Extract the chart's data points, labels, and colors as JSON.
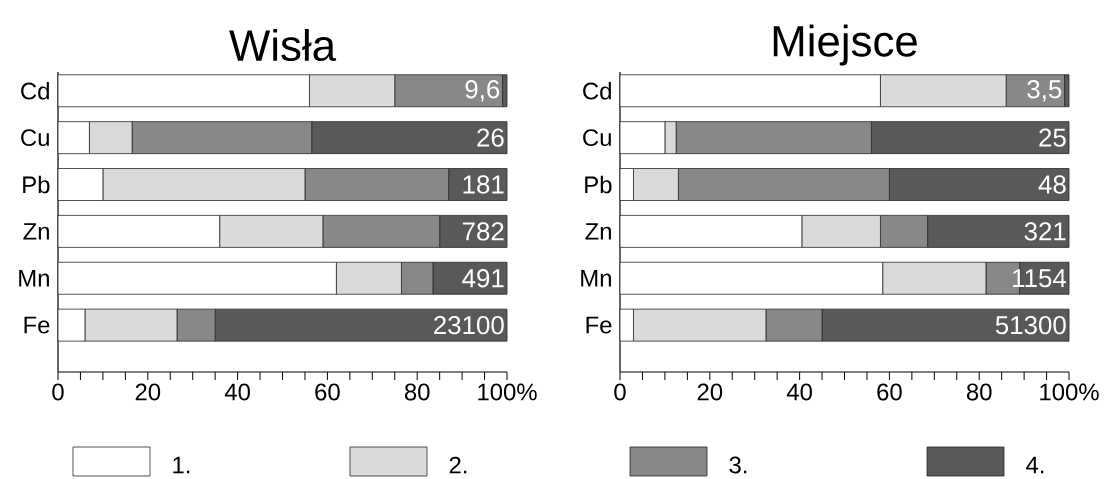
{
  "chart_data": [
    {
      "type": "bar",
      "title": "Wisła",
      "orientation": "horizontal",
      "stacked": true,
      "legend": "bottom",
      "categories": [
        "Cd",
        "Cu",
        "Pb",
        "Zn",
        "Mn",
        "Fe"
      ],
      "series": [
        {
          "name": "1.",
          "color": "#ffffff",
          "values": [
            56,
            7,
            10,
            36,
            62,
            6
          ]
        },
        {
          "name": "2.",
          "color": "#d9dbda",
          "values": [
            19,
            9.5,
            45,
            23,
            14.5,
            20.5
          ]
        },
        {
          "name": "3.",
          "color": "#888888",
          "values": [
            24,
            40,
            32,
            26,
            7,
            8.5
          ]
        },
        {
          "name": "4.",
          "color": "#595959",
          "values": [
            1,
            43.5,
            13,
            15,
            16.5,
            65
          ]
        }
      ],
      "annotations": [
        "9,6",
        "26",
        "181",
        "782",
        "491",
        "23100"
      ],
      "xlim": [
        0,
        100
      ],
      "xticks": [
        0,
        {
          "value": 5,
          "label": null
        },
        {
          "value": 10,
          "label": null
        },
        {
          "value": 15,
          "label": null
        },
        20,
        {
          "value": 25,
          "label": null
        },
        {
          "value": 30,
          "label": null
        },
        {
          "value": 35,
          "label": null
        },
        40,
        {
          "value": 45,
          "label": null
        },
        {
          "value": 50,
          "label": null
        },
        {
          "value": 55,
          "label": null
        },
        60,
        {
          "value": 65,
          "label": null
        },
        {
          "value": 70,
          "label": null
        },
        {
          "value": 75,
          "label": null
        },
        80,
        {
          "value": 85,
          "label": null
        },
        {
          "value": 90,
          "label": null
        },
        {
          "value": 95,
          "label": null
        },
        {
          "value": 100,
          "label": "100%"
        }
      ]
    },
    {
      "type": "bar",
      "title": "Miejsce",
      "orientation": "horizontal",
      "stacked": true,
      "categories": [
        "Cd",
        "Cu",
        "Pb",
        "Zn",
        "Mn",
        "Fe"
      ],
      "series": [
        {
          "color": "#ffffff",
          "values": [
            58,
            10,
            3,
            40.5,
            58.5,
            3
          ]
        },
        {
          "color": "#d9dbda",
          "values": [
            28,
            2.5,
            10,
            17.5,
            23,
            29.5
          ]
        },
        {
          "color": "#888888",
          "values": [
            13,
            43.5,
            47,
            10.5,
            7.5,
            12.5
          ]
        },
        {
          "color": "#595959",
          "values": [
            1,
            44,
            40,
            31.5,
            11,
            55
          ]
        }
      ],
      "annotations": [
        "3,5",
        "25",
        "48",
        "321",
        "1154",
        "51300"
      ],
      "xlim": [
        0,
        100
      ],
      "xticks": [
        0,
        {
          "value": 5,
          "label": null
        },
        {
          "value": 10,
          "label": null
        },
        {
          "value": 15,
          "label": null
        },
        20,
        {
          "value": 25,
          "label": null
        },
        {
          "value": 30,
          "label": null
        },
        {
          "value": 35,
          "label": null
        },
        40,
        {
          "value": 45,
          "label": null
        },
        {
          "value": 50,
          "label": null
        },
        {
          "value": 55,
          "label": null
        },
        60,
        {
          "value": 65,
          "label": null
        },
        {
          "value": 70,
          "label": null
        },
        {
          "value": 75,
          "label": null
        },
        80,
        {
          "value": 85,
          "label": null
        },
        {
          "value": 90,
          "label": null
        },
        {
          "value": 95,
          "label": null
        },
        {
          "value": 100,
          "label": "100%"
        }
      ]
    }
  ]
}
